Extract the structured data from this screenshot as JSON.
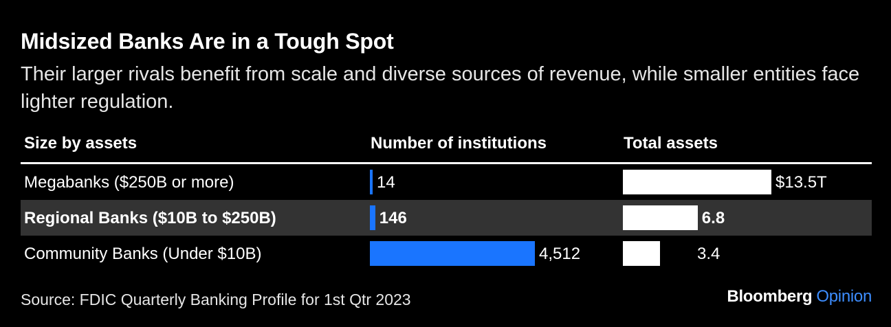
{
  "title": "Midsized Banks Are in a Tough Spot",
  "subtitle": "Their larger rivals benefit from scale and diverse sources of revenue, while smaller entities face lighter regulation.",
  "columns": [
    "Size by assets",
    "Number of institutions",
    "Total assets"
  ],
  "source": "Source: FDIC Quarterly Banking Profile for 1st Qtr 2023",
  "brand": {
    "name": "Bloomberg",
    "section": "Opinion"
  },
  "colors": {
    "institutions_bar": "#1a75ff",
    "assets_bar": "#ffffff",
    "highlight_row": "#333333"
  },
  "chart_data": {
    "type": "table",
    "highlight_row": 1,
    "rows": [
      {
        "category": "Megabanks ($250B or more)",
        "institutions": 14,
        "institutions_label": "14",
        "assets": 13.5,
        "assets_label": "$13.5T"
      },
      {
        "category": "Regional Banks ($10B to $250B)",
        "institutions": 146,
        "institutions_label": "146",
        "assets": 6.8,
        "assets_label": "6.8"
      },
      {
        "category": "Community Banks (Under $10B)",
        "institutions": 4512,
        "institutions_label": "4,512",
        "assets": 3.4,
        "assets_label": "3.4"
      }
    ]
  }
}
